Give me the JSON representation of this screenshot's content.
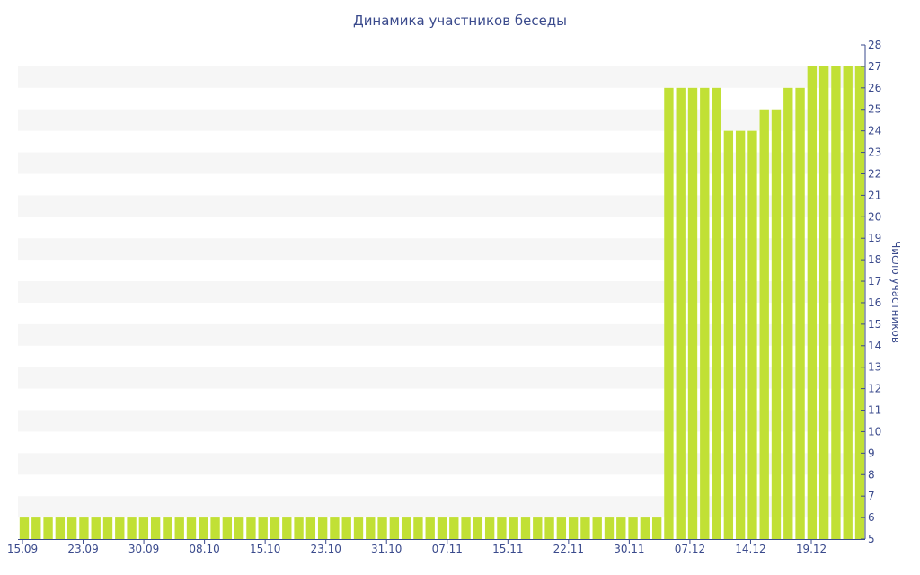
{
  "chart_data": {
    "type": "bar",
    "title": "Динамика участников беседы",
    "xlabel": "",
    "ylabel": "Число участников",
    "ylim": [
      5,
      28
    ],
    "y_ticks": [
      5,
      6,
      7,
      8,
      9,
      10,
      11,
      12,
      13,
      14,
      15,
      16,
      17,
      18,
      19,
      20,
      21,
      22,
      23,
      24,
      25,
      26,
      27,
      28
    ],
    "x_tick_labels": [
      "15.09",
      "23.09",
      "30.09",
      "08.10",
      "15.10",
      "23.10",
      "31.10",
      "07.11",
      "15.11",
      "22.11",
      "30.11",
      "07.12",
      "14.12",
      "19.12"
    ],
    "grid": "horizontal alternating bands",
    "bar_color": "#c1e035",
    "values": [
      6,
      6,
      6,
      6,
      6,
      6,
      6,
      6,
      6,
      6,
      6,
      6,
      6,
      6,
      6,
      6,
      6,
      6,
      6,
      6,
      6,
      6,
      6,
      6,
      6,
      6,
      6,
      6,
      6,
      6,
      6,
      6,
      6,
      6,
      6,
      6,
      6,
      6,
      6,
      6,
      6,
      6,
      6,
      6,
      6,
      6,
      6,
      6,
      6,
      6,
      6,
      6,
      6,
      6,
      26,
      26,
      26,
      26,
      26,
      24,
      24,
      24,
      25,
      25,
      26,
      26,
      27,
      27,
      27,
      27,
      27
    ]
  }
}
